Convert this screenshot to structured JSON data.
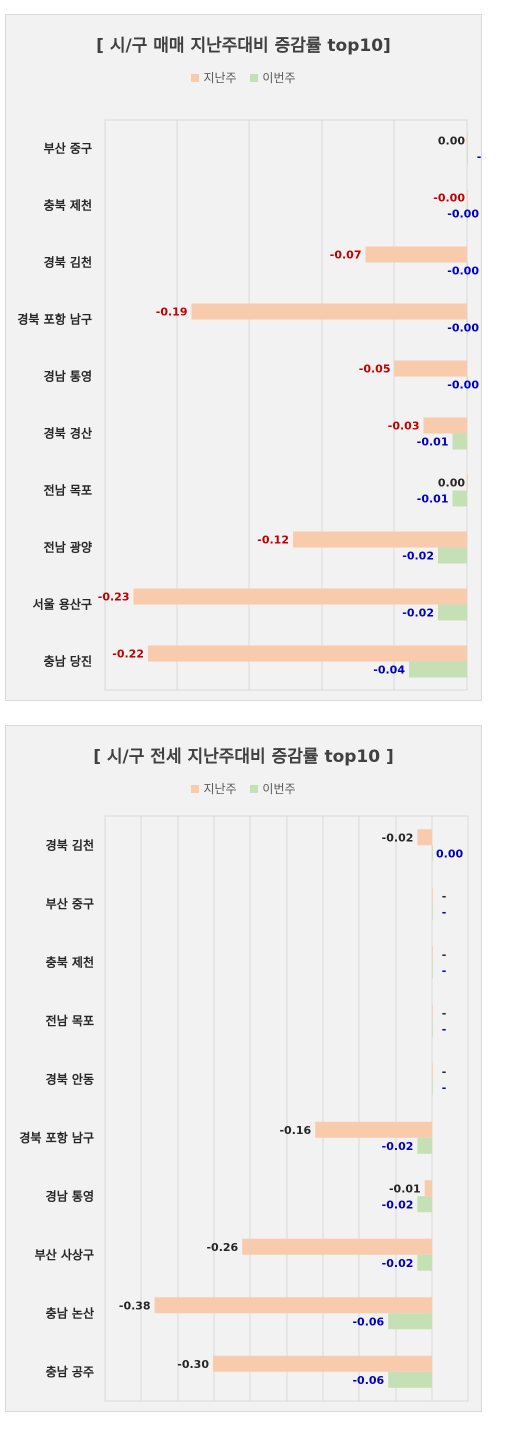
{
  "colors": {
    "prev": "#f8cbad",
    "curr": "#c5e0b4",
    "neg_prev": "#c00000",
    "curr_label": "#0000c0",
    "plain_label": "#262626",
    "grid": "#d9d9d9"
  },
  "chart_data": [
    {
      "type": "bar",
      "orientation": "horizontal",
      "title": "[ 시/구 매매 지난주대비 증감률 top10]",
      "legend": [
        "지난주",
        "이번주"
      ],
      "legend_position": "top",
      "categories": [
        "부산 중구",
        "충북 제천",
        "경북 김천",
        "경북 포항 남구",
        "경남 통영",
        "경북 경산",
        "전남 목포",
        "전남 광양",
        "서울 용산구",
        "충남 당진"
      ],
      "series": [
        {
          "name": "지난주",
          "values": [
            0.0,
            -0.0,
            -0.07,
            -0.19,
            -0.05,
            -0.03,
            0.0,
            -0.12,
            -0.23,
            -0.22
          ],
          "labels": [
            "0.00",
            "-0.00",
            "-0.07",
            "-0.19",
            "-0.05",
            "-0.03",
            "0.00",
            "-0.12",
            "-0.23",
            "-0.22"
          ]
        },
        {
          "name": "이번주",
          "values": [
            0,
            -0.0,
            -0.0,
            -0.0,
            -0.0,
            -0.01,
            -0.01,
            -0.02,
            -0.02,
            -0.04
          ],
          "labels": [
            "-",
            "-0.00",
            "-0.00",
            "-0.00",
            "-0.00",
            "-0.01",
            "-0.01",
            "-0.02",
            "-0.02",
            "-0.04"
          ]
        }
      ],
      "xlim": [
        -0.25,
        0
      ],
      "grid": true
    },
    {
      "type": "bar",
      "orientation": "horizontal",
      "title": "[ 시/구 전세 지난주대비 증감률 top10 ]",
      "legend": [
        "지난주",
        "이번주"
      ],
      "legend_position": "top",
      "categories": [
        "경북 김천",
        "부산 중구",
        "충북 제천",
        "전남 목포",
        "경북 안동",
        "경북 포항 남구",
        "경남 통영",
        "부산 사상구",
        "충남 논산",
        "충남 공주"
      ],
      "series": [
        {
          "name": "지난주",
          "values": [
            -0.02,
            0,
            0,
            0,
            0,
            -0.16,
            -0.01,
            -0.26,
            -0.38,
            -0.3
          ],
          "labels": [
            "-0.02",
            "-",
            "-",
            "-",
            "-",
            "-0.16",
            "-0.01",
            "-0.26",
            "-0.38",
            "-0.30"
          ]
        },
        {
          "name": "이번주",
          "values": [
            0.0,
            0,
            0,
            0,
            0,
            -0.02,
            -0.02,
            -0.02,
            -0.06,
            -0.06
          ],
          "labels": [
            "0.00",
            "-",
            "-",
            "-",
            "-",
            "-0.02",
            "-0.02",
            "-0.02",
            "-0.06",
            "-0.06"
          ]
        }
      ],
      "xlim": [
        -0.45,
        0.05
      ],
      "grid": true
    }
  ]
}
